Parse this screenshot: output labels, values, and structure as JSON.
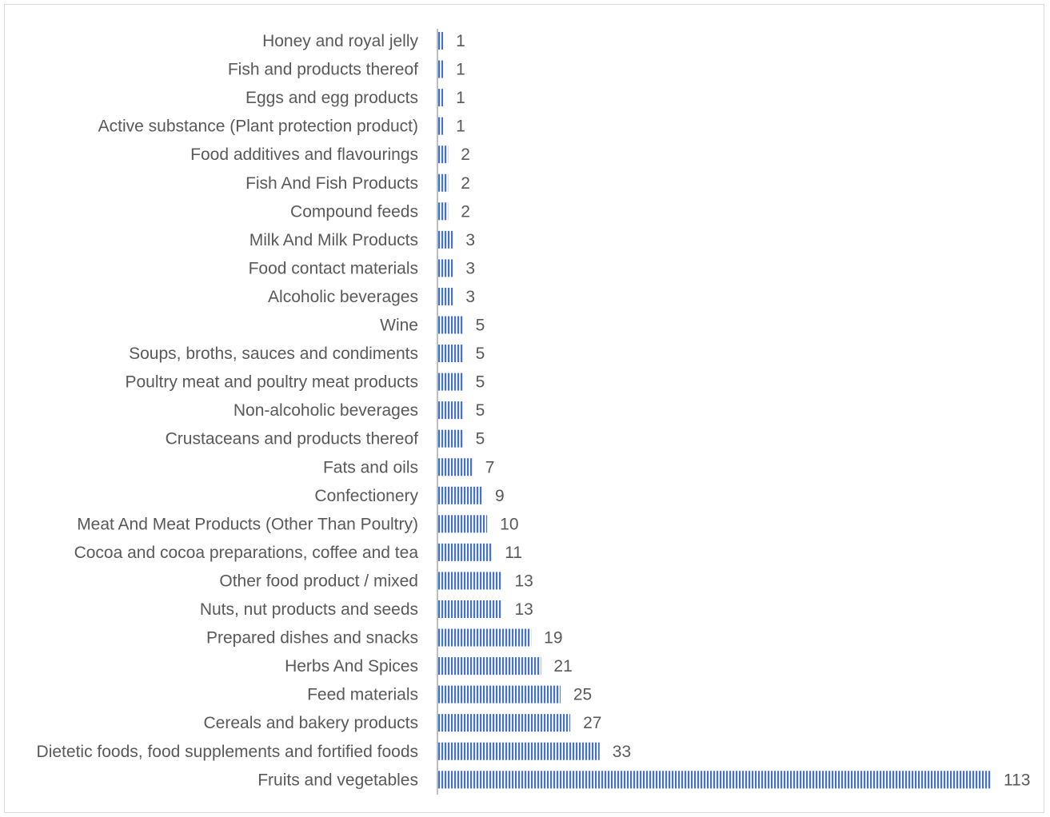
{
  "chart_data": {
    "type": "bar",
    "orientation": "horizontal",
    "categories": [
      "Honey and royal jelly",
      "Fish and products thereof",
      "Eggs and egg products",
      "Active substance (Plant protection product)",
      "Food additives and flavourings",
      "Fish And Fish Products",
      "Compound feeds",
      "Milk And Milk Products",
      "Food contact materials",
      "Alcoholic beverages",
      "Wine",
      "Soups, broths, sauces and condiments",
      "Poultry meat and poultry meat products",
      "Non-alcoholic beverages",
      "Crustaceans and products thereof",
      "Fats and oils",
      "Confectionery",
      "Meat And Meat Products (Other Than Poultry)",
      "Cocoa and cocoa preparations, coffee and tea",
      "Other food product / mixed",
      "Nuts, nut products and seeds",
      "Prepared dishes and snacks",
      "Herbs And Spices",
      "Feed materials",
      "Cereals and bakery products",
      "Dietetic foods, food supplements and fortified foods",
      "Fruits and vegetables"
    ],
    "values": [
      1,
      1,
      1,
      1,
      2,
      2,
      2,
      3,
      3,
      3,
      5,
      5,
      5,
      5,
      5,
      7,
      9,
      10,
      11,
      13,
      13,
      19,
      21,
      25,
      27,
      33,
      113
    ],
    "xlim": [
      0,
      113
    ],
    "grid": false,
    "legend": "none",
    "bar_color": "#4472c4",
    "bar_pattern": "vertical-stripes"
  }
}
